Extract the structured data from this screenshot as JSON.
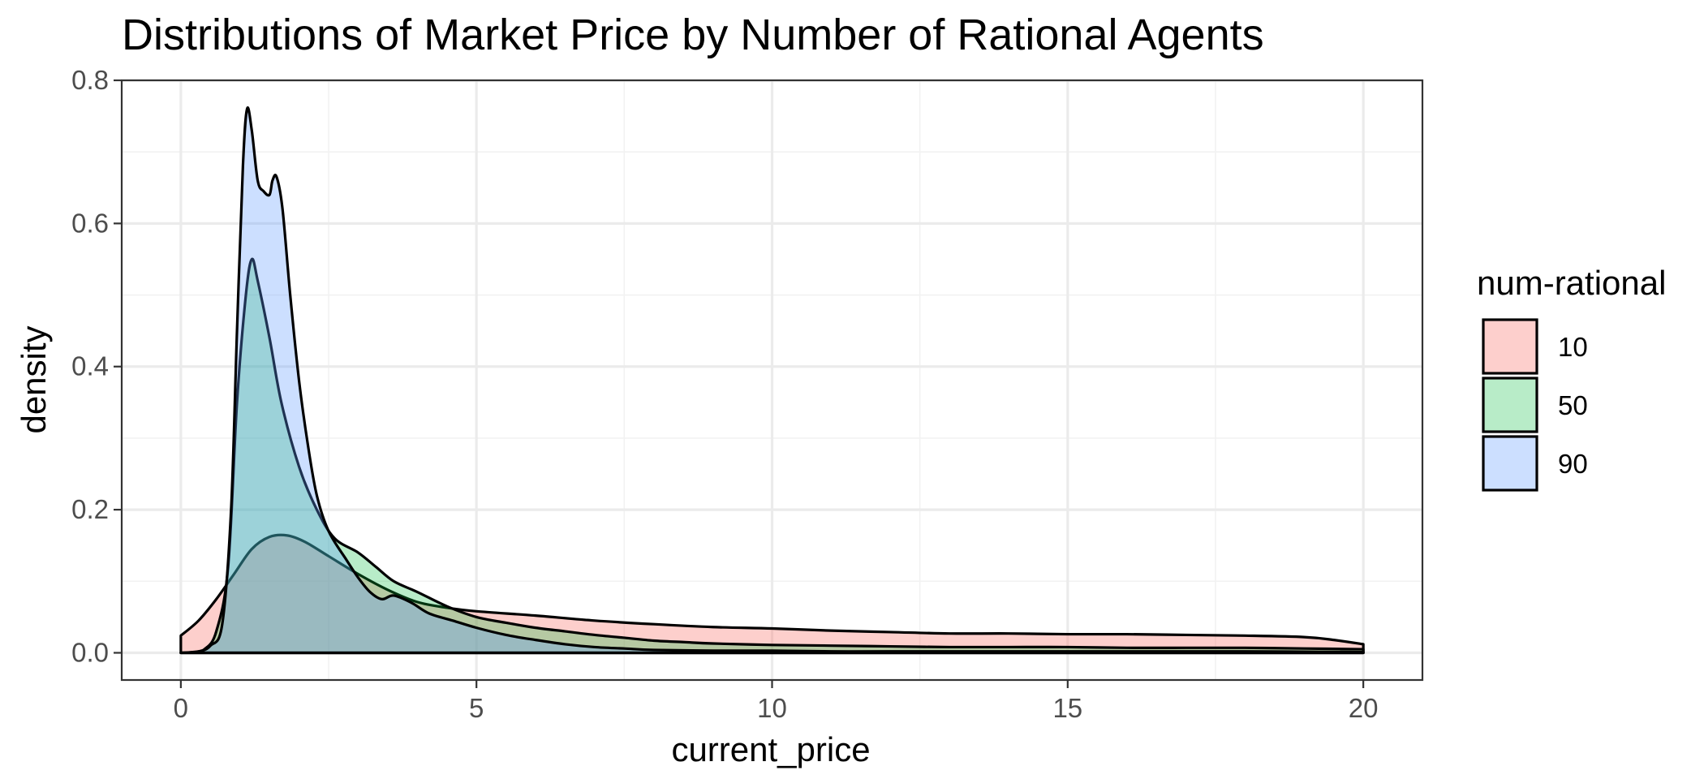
{
  "chart_data": {
    "type": "area",
    "title": "Distributions of Market Price by Number of Rational Agents",
    "xlabel": "current_price",
    "ylabel": "density",
    "xlim": [
      -1,
      21
    ],
    "ylim": [
      -0.038,
      0.8
    ],
    "x_ticks": [
      0,
      5,
      10,
      15,
      20
    ],
    "y_ticks": [
      0.0,
      0.2,
      0.4,
      0.6,
      0.8
    ],
    "x_tick_labels": [
      "0",
      "5",
      "10",
      "15",
      "20"
    ],
    "y_tick_labels": [
      "0.0",
      "0.2",
      "0.4",
      "0.6",
      "0.8"
    ],
    "grid": true,
    "legend_position": "right",
    "legend": {
      "title": "num-rational",
      "entries": [
        "10",
        "50",
        "90"
      ]
    },
    "series": [
      {
        "name": "10",
        "color": "#F8766D",
        "fill_opacity": 0.35,
        "points": [
          [
            0,
            0.024
          ],
          [
            0.3,
            0.045
          ],
          [
            0.6,
            0.075
          ],
          [
            0.9,
            0.11
          ],
          [
            1.2,
            0.145
          ],
          [
            1.5,
            0.162
          ],
          [
            1.8,
            0.164
          ],
          [
            2.1,
            0.155
          ],
          [
            2.5,
            0.135
          ],
          [
            3,
            0.11
          ],
          [
            3.5,
            0.088
          ],
          [
            4,
            0.071
          ],
          [
            4.5,
            0.063
          ],
          [
            5,
            0.058
          ],
          [
            6,
            0.052
          ],
          [
            7,
            0.045
          ],
          [
            8,
            0.04
          ],
          [
            9,
            0.036
          ],
          [
            10,
            0.034
          ],
          [
            11,
            0.031
          ],
          [
            12,
            0.029
          ],
          [
            13,
            0.027
          ],
          [
            14,
            0.027
          ],
          [
            15,
            0.026
          ],
          [
            16,
            0.026
          ],
          [
            17,
            0.025
          ],
          [
            18,
            0.024
          ],
          [
            19,
            0.022
          ],
          [
            19.5,
            0.018
          ],
          [
            20,
            0.012
          ]
        ]
      },
      {
        "name": "50",
        "color": "#00BA38",
        "fill_opacity": 0.28,
        "points": [
          [
            0,
            0
          ],
          [
            0.2,
            0.001
          ],
          [
            0.4,
            0.005
          ],
          [
            0.6,
            0.03
          ],
          [
            0.8,
            0.12
          ],
          [
            0.95,
            0.35
          ],
          [
            1.1,
            0.5
          ],
          [
            1.2,
            0.55
          ],
          [
            1.3,
            0.52
          ],
          [
            1.5,
            0.44
          ],
          [
            1.7,
            0.35
          ],
          [
            2,
            0.26
          ],
          [
            2.3,
            0.2
          ],
          [
            2.6,
            0.16
          ],
          [
            3,
            0.14
          ],
          [
            3.3,
            0.12
          ],
          [
            3.6,
            0.1
          ],
          [
            4,
            0.085
          ],
          [
            4.5,
            0.065
          ],
          [
            5,
            0.05
          ],
          [
            5.5,
            0.042
          ],
          [
            6,
            0.035
          ],
          [
            6.5,
            0.03
          ],
          [
            7,
            0.025
          ],
          [
            7.5,
            0.021
          ],
          [
            8,
            0.017
          ],
          [
            8.5,
            0.015
          ],
          [
            9,
            0.013
          ],
          [
            10,
            0.011
          ],
          [
            11,
            0.01
          ],
          [
            12,
            0.009
          ],
          [
            13,
            0.008
          ],
          [
            14,
            0.008
          ],
          [
            15,
            0.008
          ],
          [
            16,
            0.007
          ],
          [
            17,
            0.007
          ],
          [
            18,
            0.007
          ],
          [
            19,
            0.006
          ],
          [
            20,
            0.005
          ]
        ]
      },
      {
        "name": "90",
        "color": "#619CFF",
        "fill_opacity": 0.32,
        "points": [
          [
            0,
            0
          ],
          [
            0.3,
            0.002
          ],
          [
            0.5,
            0.01
          ],
          [
            0.7,
            0.04
          ],
          [
            0.85,
            0.2
          ],
          [
            0.95,
            0.45
          ],
          [
            1.05,
            0.68
          ],
          [
            1.12,
            0.76
          ],
          [
            1.2,
            0.73
          ],
          [
            1.3,
            0.66
          ],
          [
            1.4,
            0.645
          ],
          [
            1.5,
            0.64
          ],
          [
            1.55,
            0.66
          ],
          [
            1.62,
            0.665
          ],
          [
            1.72,
            0.62
          ],
          [
            1.85,
            0.5
          ],
          [
            2,
            0.38
          ],
          [
            2.15,
            0.29
          ],
          [
            2.3,
            0.22
          ],
          [
            2.5,
            0.17
          ],
          [
            2.8,
            0.13
          ],
          [
            3,
            0.105
          ],
          [
            3.2,
            0.085
          ],
          [
            3.4,
            0.075
          ],
          [
            3.6,
            0.08
          ],
          [
            3.9,
            0.07
          ],
          [
            4.2,
            0.055
          ],
          [
            4.6,
            0.045
          ],
          [
            5,
            0.035
          ],
          [
            5.5,
            0.025
          ],
          [
            6,
            0.018
          ],
          [
            6.5,
            0.012
          ],
          [
            7,
            0.008
          ],
          [
            7.5,
            0.006
          ],
          [
            8,
            0.004
          ],
          [
            9,
            0.003
          ],
          [
            10,
            0.003
          ],
          [
            11,
            0.002
          ],
          [
            12,
            0.002
          ],
          [
            14,
            0.002
          ],
          [
            16,
            0.002
          ],
          [
            18,
            0.002
          ],
          [
            20,
            0.001
          ]
        ]
      }
    ]
  }
}
